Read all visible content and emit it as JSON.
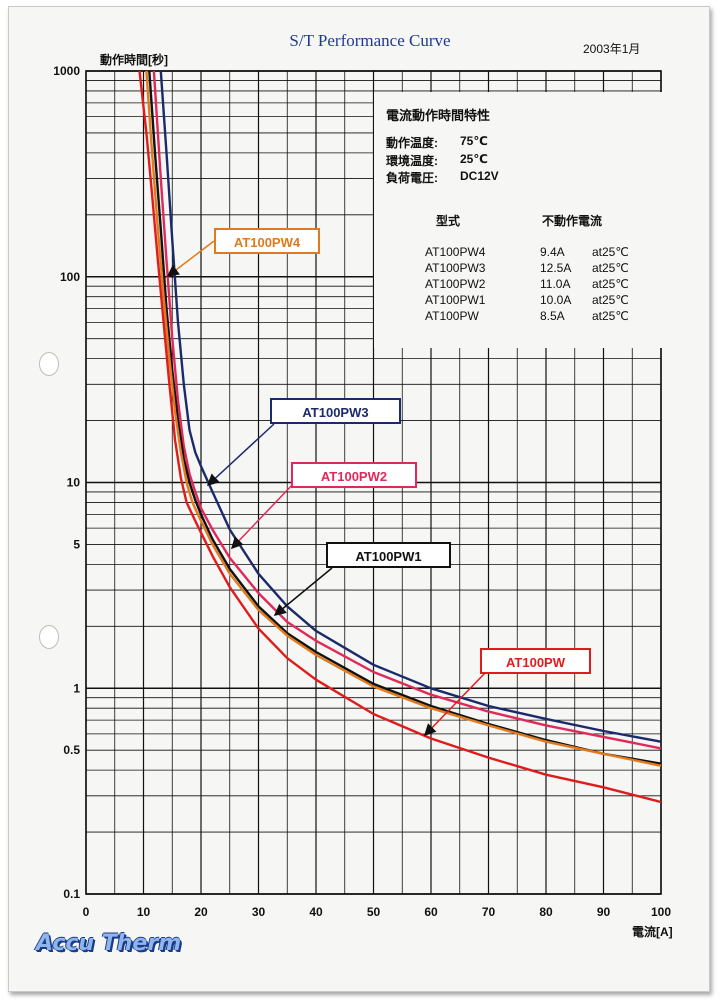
{
  "title": "S/T Performance Curve",
  "date": "2003年1月",
  "brand": "Accu Therm",
  "info_box": {
    "heading": "電流動作時間特性",
    "conditions": [
      {
        "label": "動作温度:",
        "value": "75℃"
      },
      {
        "label": "環境温度:",
        "value": "25℃"
      },
      {
        "label": "負荷電圧:",
        "value": "DC12V"
      }
    ],
    "table_header": {
      "model": "型式",
      "current": "不動作電流"
    },
    "rows": [
      {
        "model": "AT100PW4",
        "current": "9.4A",
        "at": "at25℃"
      },
      {
        "model": "AT100PW3",
        "current": "12.5A",
        "at": "at25℃"
      },
      {
        "model": "AT100PW2",
        "current": "11.0A",
        "at": "at25℃"
      },
      {
        "model": "AT100PW1",
        "current": "10.0A",
        "at": "at25℃"
      },
      {
        "model": "AT100PW",
        "current": "8.5A",
        "at": "at25℃"
      }
    ]
  },
  "chart_data": {
    "type": "line",
    "xlabel": "電流[A]",
    "ylabel": "動作時間[秒]",
    "x_scale": "linear",
    "y_scale": "log",
    "xlim": [
      0,
      100
    ],
    "ylim": [
      0.1,
      1000
    ],
    "x_ticks": [
      0,
      10,
      20,
      30,
      40,
      50,
      60,
      70,
      80,
      90,
      100
    ],
    "y_tick_labels": [
      {
        "value": 1000,
        "label": "1000"
      },
      {
        "value": 100,
        "label": "100"
      },
      {
        "value": 10,
        "label": "10"
      },
      {
        "value": 5,
        "label": "5"
      },
      {
        "value": 1,
        "label": "1"
      },
      {
        "value": 0.5,
        "label": "0.5"
      },
      {
        "value": 0.1,
        "label": "0.1"
      }
    ],
    "grid": true,
    "series": [
      {
        "name": "AT100PW3",
        "color": "#1b2a6b",
        "x": [
          13,
          14,
          15,
          16,
          17,
          18,
          19,
          20,
          22,
          25,
          30,
          35,
          40,
          50,
          60,
          70,
          80,
          90,
          100
        ],
        "y": [
          1000,
          400,
          150,
          60,
          30,
          18,
          14,
          12,
          9,
          5.9,
          3.6,
          2.5,
          1.9,
          1.3,
          1.0,
          0.82,
          0.71,
          0.62,
          0.55
        ]
      },
      {
        "name": "AT100PW2",
        "color": "#e0295a",
        "x": [
          11.8,
          13,
          14,
          15,
          16,
          17,
          18,
          19,
          20,
          22,
          25,
          30,
          35,
          40,
          50,
          60,
          70,
          80,
          90,
          100
        ],
        "y": [
          1000,
          300,
          120,
          50,
          25,
          15,
          11,
          9,
          7.5,
          5.9,
          4.3,
          2.9,
          2.1,
          1.7,
          1.2,
          0.93,
          0.77,
          0.66,
          0.58,
          0.51
        ]
      },
      {
        "name": "AT100PW1",
        "color": "#111111",
        "x": [
          11,
          12,
          13,
          14,
          15,
          16,
          17,
          18,
          19,
          20,
          22,
          25,
          30,
          35,
          40,
          50,
          60,
          70,
          80,
          90,
          100
        ],
        "y": [
          1000,
          400,
          170,
          70,
          35,
          20,
          13,
          10,
          8.2,
          7,
          5.3,
          3.8,
          2.5,
          1.85,
          1.5,
          1.05,
          0.82,
          0.67,
          0.56,
          0.48,
          0.43
        ]
      },
      {
        "name": "AT100PW4",
        "color": "#e07a1f",
        "x": [
          10.5,
          11.5,
          12.5,
          13.5,
          14.5,
          15.5,
          16.5,
          17.5,
          18.5,
          20,
          22,
          25,
          30,
          35,
          40,
          50,
          60,
          70,
          80,
          90,
          100
        ],
        "y": [
          1000,
          400,
          170,
          80,
          40,
          22,
          14,
          10,
          8,
          6.5,
          5,
          3.6,
          2.4,
          1.8,
          1.45,
          1.02,
          0.8,
          0.66,
          0.55,
          0.48,
          0.42
        ]
      },
      {
        "name": "AT100PW",
        "color": "#e01b1b",
        "x": [
          9.3,
          10.5,
          11.5,
          12.5,
          13.5,
          14.5,
          15.5,
          16.5,
          17.5,
          19,
          20,
          22,
          25,
          30,
          35,
          40,
          50,
          60,
          70,
          80,
          90,
          100
        ],
        "y": [
          1000,
          500,
          250,
          120,
          60,
          30,
          16,
          10.5,
          8,
          6.5,
          5.7,
          4.4,
          3.1,
          1.95,
          1.4,
          1.1,
          0.75,
          0.57,
          0.46,
          0.38,
          0.33,
          0.28
        ]
      }
    ]
  }
}
